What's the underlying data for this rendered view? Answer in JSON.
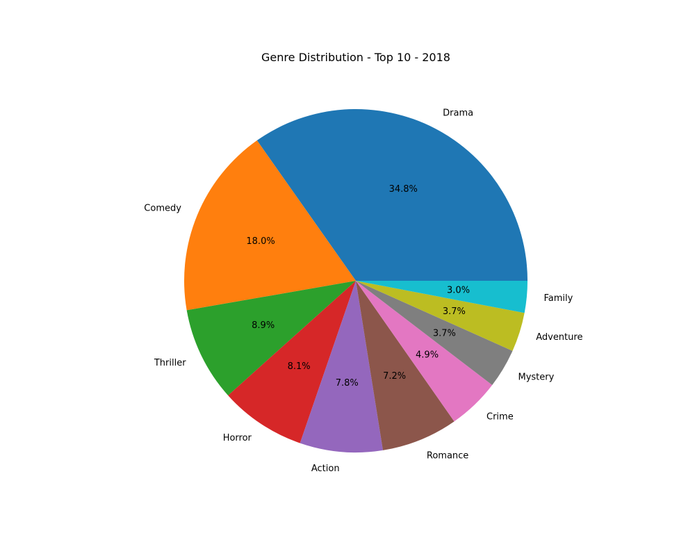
{
  "chart_data": {
    "type": "pie",
    "title": "Genre Distribution - Top 10 - 2018",
    "categories": [
      "Drama",
      "Comedy",
      "Thriller",
      "Horror",
      "Action",
      "Romance",
      "Crime",
      "Mystery",
      "Adventure",
      "Family"
    ],
    "values": [
      34.8,
      18.0,
      8.9,
      8.1,
      7.8,
      7.2,
      4.9,
      3.7,
      3.7,
      3.0
    ],
    "value_labels": [
      "34.8%",
      "18.0%",
      "8.9%",
      "8.1%",
      "7.8%",
      "7.2%",
      "4.9%",
      "3.7%",
      "3.7%",
      "3.0%"
    ],
    "colors": [
      "#1f77b4",
      "#ff7f0e",
      "#2ca02c",
      "#d62728",
      "#9467bd",
      "#8c564b",
      "#e377c2",
      "#7f7f7f",
      "#bcbd22",
      "#17becf"
    ],
    "start_angle_deg": 0,
    "direction": "counterclockwise"
  }
}
